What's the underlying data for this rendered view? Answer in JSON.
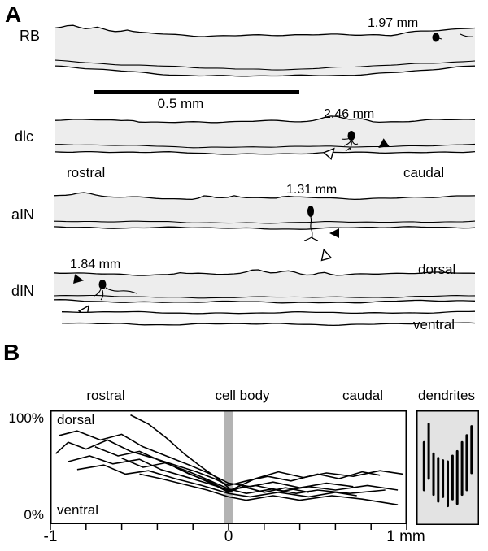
{
  "figure": {
    "panelA": {
      "label": "A",
      "strips": [
        {
          "name": "RB",
          "measurement": "1.97 mm"
        },
        {
          "name": "dlc",
          "measurement": "2.46 mm"
        },
        {
          "name": "aIN",
          "measurement": "1.31 mm"
        },
        {
          "name": "dIN",
          "measurement": "1.84 mm"
        }
      ],
      "scale_bar_label": "0.5 mm",
      "labels": {
        "rostral": "rostral",
        "caudal": "caudal",
        "dorsal": "dorsal",
        "ventral": "ventral"
      }
    },
    "panelB": {
      "label": "B",
      "column_labels": {
        "rostral": "rostral",
        "cell_body": "cell body",
        "caudal": "caudal",
        "dendrites": "dendrites"
      },
      "axis_labels": {
        "y_top": "100%",
        "y_bottom": "0%",
        "x_left": "-1",
        "x_center": "0",
        "x_right": "1 mm"
      },
      "region_labels": {
        "dorsal": "dorsal",
        "ventral": "ventral"
      }
    }
  },
  "chart_data": {
    "type": "line",
    "xlim": [
      -1,
      1
    ],
    "ylim": [
      0,
      100
    ],
    "x_tick_step": 0.2,
    "x_tick_labels": [
      "-1",
      "0",
      "1 mm"
    ],
    "y_tick_labels": [
      "0%",
      "100%"
    ],
    "annotations": [
      "rostral",
      "cell body",
      "caudal",
      "dorsal",
      "ventral",
      "dendrites"
    ],
    "cell_body_band_x": 0,
    "series": [
      {
        "points": [
          [
            -0.97,
            62
          ],
          [
            -0.9,
            72
          ],
          [
            -0.8,
            66
          ],
          [
            -0.68,
            74
          ],
          [
            -0.55,
            64
          ],
          [
            -0.42,
            58
          ],
          [
            -0.3,
            52
          ],
          [
            -0.18,
            46
          ],
          [
            -0.08,
            40
          ],
          [
            0,
            34
          ],
          [
            0.1,
            38
          ],
          [
            0.22,
            42
          ],
          [
            0.35,
            38
          ],
          [
            0.5,
            44
          ],
          [
            0.62,
            40
          ],
          [
            0.75,
            46
          ],
          [
            0.85,
            43
          ]
        ]
      },
      {
        "points": [
          [
            -0.95,
            78
          ],
          [
            -0.85,
            82
          ],
          [
            -0.72,
            74
          ],
          [
            -0.6,
            79
          ],
          [
            -0.48,
            68
          ],
          [
            -0.35,
            60
          ],
          [
            -0.22,
            52
          ],
          [
            -0.1,
            44
          ],
          [
            0,
            36
          ],
          [
            0.12,
            33
          ],
          [
            0.25,
            37
          ],
          [
            0.4,
            32
          ],
          [
            0.55,
            36
          ],
          [
            0.7,
            33
          ]
        ]
      },
      {
        "points": [
          [
            -0.9,
            55
          ],
          [
            -0.78,
            60
          ],
          [
            -0.65,
            53
          ],
          [
            -0.5,
            57
          ],
          [
            -0.38,
            48
          ],
          [
            -0.25,
            42
          ],
          [
            -0.12,
            36
          ],
          [
            0,
            30
          ],
          [
            0.15,
            34
          ],
          [
            0.3,
            29
          ],
          [
            0.45,
            33
          ],
          [
            0.6,
            30
          ],
          [
            0.78,
            34
          ],
          [
            0.95,
            30
          ]
        ]
      },
      {
        "points": [
          [
            -0.85,
            48
          ],
          [
            -0.7,
            52
          ],
          [
            -0.58,
            44
          ],
          [
            -0.45,
            47
          ],
          [
            -0.3,
            40
          ],
          [
            -0.15,
            34
          ],
          [
            0,
            27
          ],
          [
            0.12,
            24
          ],
          [
            0.28,
            28
          ],
          [
            0.45,
            24
          ],
          [
            0.6,
            28
          ],
          [
            0.72,
            25
          ]
        ]
      },
      {
        "points": [
          [
            -0.75,
            68
          ],
          [
            -0.62,
            60
          ],
          [
            -0.5,
            64
          ],
          [
            -0.36,
            54
          ],
          [
            -0.22,
            46
          ],
          [
            -0.1,
            38
          ],
          [
            0,
            31
          ],
          [
            0.1,
            27
          ],
          [
            0.25,
            31
          ],
          [
            0.38,
            27
          ],
          [
            0.5,
            30
          ],
          [
            0.68,
            27
          ],
          [
            0.88,
            30
          ]
        ]
      },
      {
        "points": [
          [
            -0.55,
            96
          ],
          [
            -0.45,
            88
          ],
          [
            -0.35,
            76
          ],
          [
            -0.25,
            62
          ],
          [
            -0.15,
            50
          ],
          [
            -0.06,
            40
          ],
          [
            0,
            32
          ]
        ]
      },
      {
        "points": [
          [
            -0.6,
            58
          ],
          [
            -0.48,
            50
          ],
          [
            -0.35,
            54
          ],
          [
            -0.22,
            44
          ],
          [
            -0.1,
            37
          ],
          [
            0,
            29
          ],
          [
            0.15,
            40
          ],
          [
            0.28,
            46
          ],
          [
            0.42,
            41
          ],
          [
            0.55,
            45
          ],
          [
            0.7,
            42
          ],
          [
            0.85,
            47
          ],
          [
            0.98,
            44
          ]
        ]
      },
      {
        "points": [
          [
            -0.5,
            44
          ],
          [
            -0.38,
            40
          ],
          [
            -0.25,
            35
          ],
          [
            -0.12,
            30
          ],
          [
            0,
            24
          ],
          [
            0.1,
            21
          ],
          [
            0.25,
            25
          ],
          [
            0.4,
            21
          ],
          [
            0.58,
            25
          ],
          [
            0.75,
            22
          ],
          [
            0.95,
            17
          ]
        ]
      },
      {
        "points": [
          [
            -0.3,
            50
          ],
          [
            -0.2,
            43
          ],
          [
            -0.1,
            36
          ],
          [
            0,
            28
          ],
          [
            0.08,
            33
          ],
          [
            0.2,
            28
          ],
          [
            0.32,
            32
          ],
          [
            0.45,
            28
          ]
        ]
      }
    ],
    "dendrites_panel": {
      "bars": [
        {
          "x": 0.05,
          "y_bottom": 30,
          "y_top": 72
        },
        {
          "x": 0.14,
          "y_bottom": 40,
          "y_top": 88
        },
        {
          "x": 0.23,
          "y_bottom": 26,
          "y_top": 62
        },
        {
          "x": 0.32,
          "y_bottom": 20,
          "y_top": 58
        },
        {
          "x": 0.41,
          "y_bottom": 24,
          "y_top": 56
        },
        {
          "x": 0.5,
          "y_bottom": 16,
          "y_top": 55
        },
        {
          "x": 0.59,
          "y_bottom": 22,
          "y_top": 60
        },
        {
          "x": 0.68,
          "y_bottom": 18,
          "y_top": 64
        },
        {
          "x": 0.77,
          "y_bottom": 26,
          "y_top": 72
        },
        {
          "x": 0.86,
          "y_bottom": 30,
          "y_top": 78
        },
        {
          "x": 0.95,
          "y_bottom": 45,
          "y_top": 86
        }
      ]
    }
  }
}
